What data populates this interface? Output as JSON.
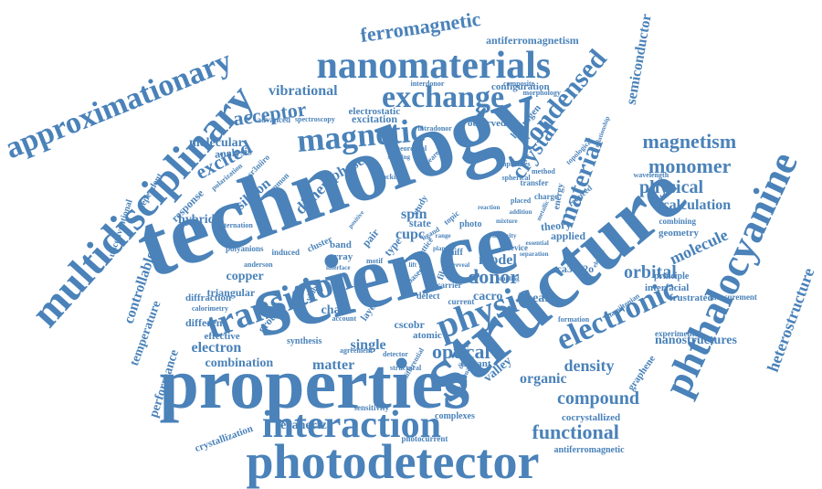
{
  "colors": {
    "word": "#4a82b9",
    "background": "#ffffff"
  },
  "words": [
    {
      "text": "technology",
      "weight": 100
    },
    {
      "text": "science",
      "weight": 98
    },
    {
      "text": "structure",
      "weight": 90
    },
    {
      "text": "properties",
      "weight": 88
    },
    {
      "text": "photodetector",
      "weight": 72
    },
    {
      "text": "multidisciplinary",
      "weight": 70
    },
    {
      "text": "interaction",
      "weight": 66
    },
    {
      "text": "phthalocyanine",
      "weight": 66
    },
    {
      "text": "nanomaterials",
      "weight": 62
    },
    {
      "text": "approximationary",
      "weight": 58
    },
    {
      "text": "transition",
      "weight": 58
    },
    {
      "text": "physic",
      "weight": 58
    },
    {
      "text": "exchange",
      "weight": 50
    },
    {
      "text": "magnetic",
      "weight": 52
    },
    {
      "text": "electronic",
      "weight": 50
    },
    {
      "text": "condensed",
      "weight": 46
    },
    {
      "text": "material",
      "weight": 44
    },
    {
      "text": "ferromagnetic",
      "weight": 36
    },
    {
      "text": "acceptor",
      "weight": 38
    },
    {
      "text": "excited",
      "weight": 38
    },
    {
      "text": "crystal",
      "weight": 36
    },
    {
      "text": "magnetism",
      "weight": 36
    },
    {
      "text": "monomer",
      "weight": 36
    },
    {
      "text": "physical",
      "weight": 34
    },
    {
      "text": "donor",
      "weight": 36
    },
    {
      "text": "optical",
      "weight": 36
    },
    {
      "text": "functional",
      "weight": 36
    },
    {
      "text": "compound",
      "weight": 32
    },
    {
      "text": "heterostructure",
      "weight": 30
    },
    {
      "text": "semiconductor",
      "weight": 26
    },
    {
      "text": "molecule",
      "weight": 30
    },
    {
      "text": "orbital",
      "weight": 30
    },
    {
      "text": "density",
      "weight": 30
    },
    {
      "text": "terahertz",
      "weight": 28
    },
    {
      "text": "calculation",
      "weight": 24
    },
    {
      "text": "vibrational",
      "weight": 24
    },
    {
      "text": "silicon",
      "weight": 26
    },
    {
      "text": "dimer",
      "weight": 28
    },
    {
      "text": "phase",
      "weight": 28
    },
    {
      "text": "spin",
      "weight": 26
    },
    {
      "text": "cupc",
      "weight": 26
    },
    {
      "text": "model",
      "weight": 26
    },
    {
      "text": "chain",
      "weight": 22
    },
    {
      "text": "electron",
      "weight": 26
    },
    {
      "text": "single",
      "weight": 26
    },
    {
      "text": "matter",
      "weight": 26
    },
    {
      "text": "copper",
      "weight": 24
    },
    {
      "text": "combination",
      "weight": 22
    },
    {
      "text": "response",
      "weight": 20
    },
    {
      "text": "hybrid",
      "weight": 20
    },
    {
      "text": "analysis",
      "weight": 18
    },
    {
      "text": "molecular",
      "weight": 22
    },
    {
      "text": "antiferromagnetism",
      "weight": 18
    },
    {
      "text": "electrostatic",
      "weight": 14
    },
    {
      "text": "configuration",
      "weight": 14
    },
    {
      "text": "excitation",
      "weight": 14
    },
    {
      "text": "observed",
      "weight": 14
    },
    {
      "text": "hydrogen",
      "weight": 14
    },
    {
      "text": "organic",
      "weight": 22
    },
    {
      "text": "valley",
      "weight": 20
    },
    {
      "text": "linear",
      "weight": 20
    },
    {
      "text": "cacro",
      "weight": 20
    },
    {
      "text": "ca3co2o",
      "weight": 18
    },
    {
      "text": "applied",
      "weight": 16
    },
    {
      "text": "geometry",
      "weight": 14
    },
    {
      "text": "nanostructures",
      "weight": 14
    },
    {
      "text": "interfacial",
      "weight": 18
    },
    {
      "text": "frustrated",
      "weight": 14
    },
    {
      "text": "cscobr",
      "weight": 16
    },
    {
      "text": "different",
      "weight": 16
    },
    {
      "text": "effective",
      "weight": 14
    },
    {
      "text": "controllable",
      "weight": 18
    },
    {
      "text": "temperature",
      "weight": 16
    },
    {
      "text": "performance",
      "weight": 16
    },
    {
      "text": "crystallization",
      "weight": 12
    },
    {
      "text": "cocrystallized",
      "weight": 14
    },
    {
      "text": "antiferromagnetic",
      "weight": 12
    },
    {
      "text": "complexes",
      "weight": 12
    },
    {
      "text": "photocurrent",
      "weight": 11
    },
    {
      "text": "sensitivity",
      "weight": 10
    },
    {
      "text": "dopant",
      "weight": 14
    },
    {
      "text": "atomic",
      "weight": 14
    },
    {
      "text": "unconventional",
      "weight": 12
    },
    {
      "text": "dependent",
      "weight": 12
    },
    {
      "text": "triangular",
      "weight": 14
    },
    {
      "text": "diffraction",
      "weight": 12
    },
    {
      "text": "band",
      "weight": 14
    },
    {
      "text": "array",
      "weight": 14
    },
    {
      "text": "state",
      "weight": 14
    },
    {
      "text": "pair",
      "weight": 14
    },
    {
      "text": "type",
      "weight": 16
    },
    {
      "text": "ground",
      "weight": 14
    },
    {
      "text": "synthesis",
      "weight": 12
    },
    {
      "text": "layer",
      "weight": 12
    },
    {
      "text": "theory",
      "weight": 14
    },
    {
      "text": "graphene",
      "weight": 12
    },
    {
      "text": "principle",
      "weight": 12
    },
    {
      "text": "experimental",
      "weight": 10
    },
    {
      "text": "combining",
      "weight": 10
    },
    {
      "text": "measurement",
      "weight": 10
    },
    {
      "text": "advanced",
      "weight": 10
    },
    {
      "text": "spectroscopy",
      "weight": 9
    },
    {
      "text": "morphology",
      "weight": 9
    },
    {
      "text": "interdonor",
      "weight": 9
    },
    {
      "text": "composite",
      "weight": 9
    },
    {
      "text": "sr3niiro",
      "weight": 10
    },
    {
      "text": "polyanions",
      "weight": 9
    },
    {
      "text": "alternation",
      "weight": 8
    },
    {
      "text": "calorimetry",
      "weight": 8
    },
    {
      "text": "common",
      "weight": 10
    },
    {
      "text": "polarization",
      "weight": 8
    },
    {
      "text": "schiff",
      "weight": 12
    },
    {
      "text": "photo",
      "weight": 10
    },
    {
      "text": "study",
      "weight": 12
    },
    {
      "text": "charge",
      "weight": 10
    },
    {
      "text": "transfer",
      "weight": 10
    },
    {
      "text": "topological",
      "weight": 9
    },
    {
      "text": "wavelength",
      "weight": 9
    },
    {
      "text": "reduced",
      "weight": 9
    },
    {
      "text": "device",
      "weight": 9
    },
    {
      "text": "formation",
      "weight": 8
    },
    {
      "text": "hamiltonian",
      "weight": 8
    },
    {
      "text": "detector",
      "weight": 8
    },
    {
      "text": "agreement",
      "weight": 8
    },
    {
      "text": "differential",
      "weight": 8
    },
    {
      "text": "account",
      "weight": 8
    },
    {
      "text": "defect",
      "weight": 10
    },
    {
      "text": "carrier",
      "weight": 9
    },
    {
      "text": "current",
      "weight": 9
    },
    {
      "text": "film",
      "weight": 10
    },
    {
      "text": "packing",
      "weight": 8
    },
    {
      "text": "intradonor",
      "weight": 8
    },
    {
      "text": "theoretical",
      "weight": 8
    },
    {
      "text": "visible",
      "weight": 9
    },
    {
      "text": "induced",
      "weight": 8
    },
    {
      "text": "cluster",
      "weight": 10
    },
    {
      "text": "anderson",
      "weight": 8
    },
    {
      "text": "spherical",
      "weight": 8
    },
    {
      "text": "impurities",
      "weight": 8
    },
    {
      "text": "energy",
      "weight": 10
    },
    {
      "text": "relationship",
      "weight": 7
    },
    {
      "text": "approach",
      "weight": 8
    },
    {
      "text": "distance",
      "weight": 8
    },
    {
      "text": "structural",
      "weight": 8
    },
    {
      "text": "nearest",
      "weight": 8
    },
    {
      "text": "splitting",
      "weight": 7
    },
    {
      "text": "lattice",
      "weight": 9
    },
    {
      "text": "based",
      "weight": 9
    },
    {
      "text": "motif",
      "weight": 8
    },
    {
      "text": "topic",
      "weight": 9
    },
    {
      "text": "ligand",
      "weight": 8
    },
    {
      "text": "essential",
      "weight": 7
    },
    {
      "text": "placed",
      "weight": 8
    },
    {
      "text": "method",
      "weight": 8
    },
    {
      "text": "addition",
      "weight": 7
    },
    {
      "text": "reaction",
      "weight": 7
    },
    {
      "text": "mixture",
      "weight": 7
    },
    {
      "text": "positive",
      "weight": 7
    },
    {
      "text": "interface",
      "weight": 7
    },
    {
      "text": "lift",
      "weight": 7
    },
    {
      "text": "plane",
      "weight": 7
    },
    {
      "text": "range",
      "weight": 7
    },
    {
      "text": "reveal",
      "weight": 7
    },
    {
      "text": "impurity",
      "weight": 7
    },
    {
      "text": "separation",
      "weight": 7
    },
    {
      "text": "metallic",
      "weight": 7
    },
    {
      "text": "electric",
      "weight": 7
    },
    {
      "text": "coupling",
      "weight": 7
    }
  ]
}
